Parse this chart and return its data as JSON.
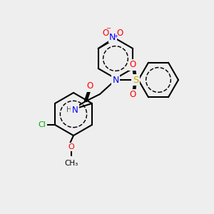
{
  "bg_color": "#eeeeee",
  "bond_color": "#000000",
  "bond_lw": 1.5,
  "atom_colors": {
    "N": "#0000ff",
    "O": "#ff0000",
    "S": "#ccaa00",
    "Cl": "#00aa00",
    "C": "#000000",
    "H": "#555555"
  },
  "font_size": 7.5,
  "fig_size": [
    3.0,
    3.0
  ],
  "dpi": 100
}
